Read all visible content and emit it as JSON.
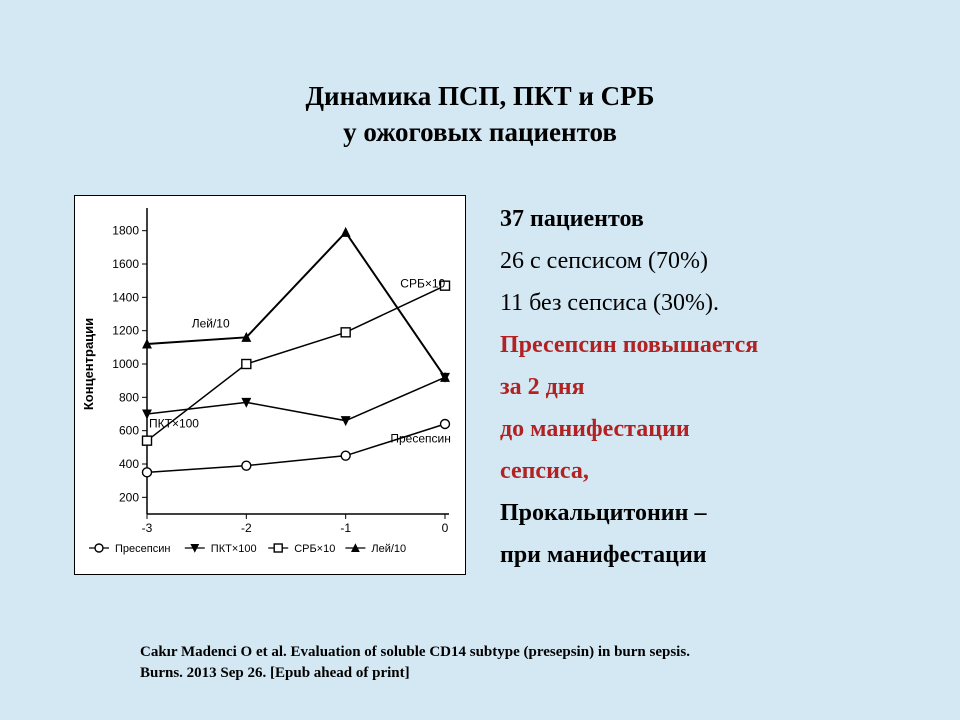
{
  "title": {
    "line1": "Динамика ПСП, ПКТ и СРБ",
    "line2": "у ожоговых пациентов"
  },
  "chart": {
    "type": "line",
    "background_color": "#ffffff",
    "border_color": "#000000",
    "ylabel": "Концентрации",
    "ylabel_fontsize": 13,
    "x_ticks": [
      -3,
      -2,
      -1,
      0
    ],
    "y_ticks": [
      200,
      400,
      600,
      800,
      1000,
      1200,
      1400,
      1600,
      1800
    ],
    "xlim": [
      -3,
      0
    ],
    "ylim": [
      100,
      1900
    ],
    "axis_color": "#000000",
    "tick_fontsize": 12,
    "series": [
      {
        "name": "Пресепсин",
        "marker": "open-circle",
        "color": "#000000",
        "line_width": 1.5,
        "values": [
          350,
          390,
          450,
          640
        ],
        "inline_label_pos": "right"
      },
      {
        "name": "ПКТ×100",
        "marker": "filled-down-triangle",
        "color": "#000000",
        "line_width": 1.5,
        "values": [
          700,
          770,
          660,
          920
        ],
        "inline_label_pos": "left"
      },
      {
        "name": "СРБ×10",
        "marker": "open-square",
        "color": "#000000",
        "line_width": 1.5,
        "values": [
          540,
          1000,
          1190,
          1470
        ],
        "inline_label_pos": "right-up"
      },
      {
        "name": "Лей/10",
        "marker": "filled-up-triangle",
        "color": "#000000",
        "line_width": 2,
        "values": [
          1120,
          1160,
          1790,
          920
        ],
        "inline_label_pos": "left-up"
      }
    ],
    "legend": {
      "items": [
        "Пресепсин",
        "ПКТ×100",
        "СРБ×10",
        "Лей/10"
      ],
      "markers": [
        "open-circle",
        "filled-down-triangle",
        "open-square",
        "filled-up-triangle"
      ],
      "fontsize": 11
    }
  },
  "bullets": {
    "l1": "37 пациентов",
    "l2": "26 с сепсисом  (70%)",
    "l3": "11 без сепсиса (30%).",
    "l4": "Пресепсин повышается",
    "l5": "за 2 дня",
    "l6": "до манифестации",
    "l7": "сепсиса,",
    "l8": "Прокальцитонин –",
    "l9": "при манифестации"
  },
  "citation": {
    "l1": "Cakır Madenci O et al. Evaluation of soluble CD14 subtype (presepsin) in burn sepsis.",
    "l2": "Burns. 2013 Sep 26. [Epub ahead of print]"
  }
}
